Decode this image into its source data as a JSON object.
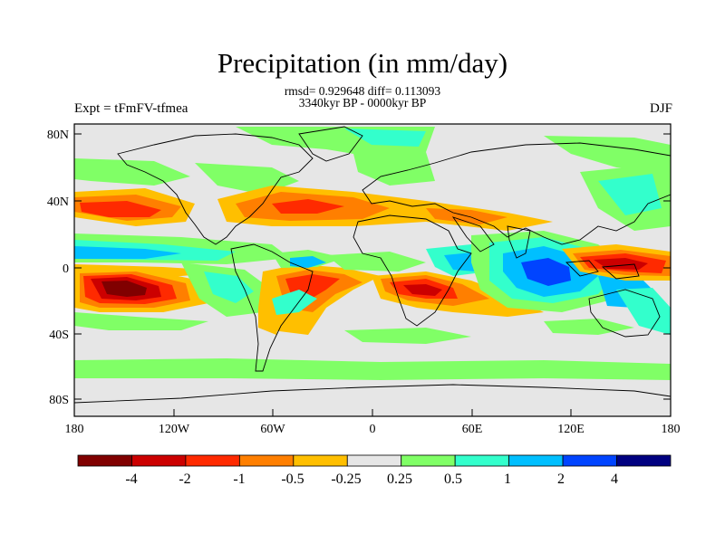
{
  "title": "Precipitation (in mm/day)",
  "stats": "rmsd= 0.929648 diff= 0.113093",
  "period": "3340kyr BP - 0000kyr BP",
  "experiment": "Expt = tFmFV-tfmea",
  "season": "DJF",
  "map": {
    "lat_ticks": [
      "80N",
      "40N",
      "0",
      "40S",
      "80S"
    ],
    "lon_ticks": [
      "180",
      "120W",
      "60W",
      "0",
      "60E",
      "120E",
      "180"
    ],
    "background": "#e6e6e6"
  },
  "colorbar": {
    "labels": [
      "-4",
      "-2",
      "-1",
      "-0.5",
      "-0.25",
      "0.25",
      "0.5",
      "1",
      "2",
      "4"
    ],
    "colors": [
      "#800000",
      "#cc0000",
      "#ff2a00",
      "#ff7f00",
      "#ffbf00",
      "#e6e6e6",
      "#80ff66",
      "#33ffcc",
      "#00bfff",
      "#0044ff",
      "#000080"
    ]
  }
}
